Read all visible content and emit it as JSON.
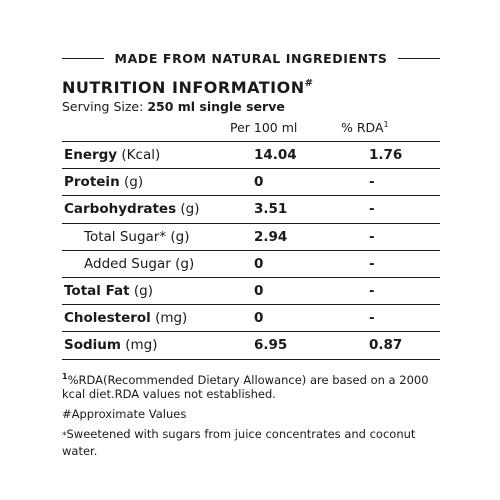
{
  "banner": "MADE FROM NATURAL INGREDIENTS",
  "title": "NUTRITION INFORMATION",
  "title_mark": "#",
  "serving": {
    "label": "Serving Size:",
    "value": "250 ml single serve"
  },
  "columns": {
    "per": "Per 100 ml",
    "rda": "% RDA",
    "rda_mark": "1"
  },
  "rows": [
    {
      "name": "Energy",
      "unit": " (Kcal)",
      "per100": "14.04",
      "rda": "1.76",
      "sub": false,
      "mark": ""
    },
    {
      "name": "Protein",
      "unit": " (g)",
      "per100": "0",
      "rda": "-",
      "sub": false,
      "mark": ""
    },
    {
      "name": "Carbohydrates",
      "unit": " (g)",
      "per100": "3.51",
      "rda": "-",
      "sub": false,
      "mark": ""
    },
    {
      "name": "Total Sugar",
      "unit": " (g)",
      "per100": "2.94",
      "rda": "-",
      "sub": true,
      "mark": "*"
    },
    {
      "name": "Added Sugar",
      "unit": " (g)",
      "per100": "0",
      "rda": "-",
      "sub": true,
      "mark": ""
    },
    {
      "name": "Total Fat",
      "unit": " (g)",
      "per100": "0",
      "rda": "-",
      "sub": false,
      "mark": ""
    },
    {
      "name": "Cholesterol",
      "unit": " (mg)",
      "per100": "0",
      "rda": "-",
      "sub": false,
      "mark": ""
    },
    {
      "name": "Sodium",
      "unit": " (mg)",
      "per100": "6.95",
      "rda": "0.87",
      "sub": false,
      "mark": ""
    }
  ],
  "footnotes": {
    "rda_mark": "1",
    "rda_note": "%RDA(Recommended Dietary Allowance) are based on a 2000 kcal diet.RDA values not established.",
    "approx": "#Approximate Values",
    "sugar_mark": "*",
    "sugar_note": "Sweetened with sugars from juice concentrates and coconut water."
  }
}
